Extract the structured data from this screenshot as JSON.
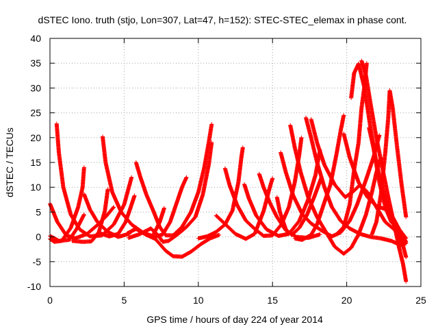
{
  "chart_data": {
    "type": "scatter",
    "title": "dSTEC Iono. truth (stjo, Lon=307, Lat=47, h=152): STEC-STEC_elemax in phase cont.",
    "xlabel": "GPS time / hours of day 224 of year 2014",
    "ylabel": "dSTEC  / TECUs",
    "xlim": [
      0,
      25
    ],
    "ylim": [
      -10,
      40
    ],
    "xticks": [
      0,
      5,
      10,
      15,
      20,
      25
    ],
    "yticks": [
      -10,
      -5,
      0,
      5,
      10,
      15,
      20,
      25,
      30,
      35,
      40
    ],
    "grid": true,
    "marker": "+",
    "color": "#ff0000",
    "arcs": [
      {
        "points": [
          [
            0.0,
            6.7
          ],
          [
            0.5,
            3.0
          ],
          [
            1.1,
            0.3
          ],
          [
            1.7,
            -0.3
          ],
          [
            2.5,
            0.6
          ],
          [
            3.2,
            2.4
          ],
          [
            3.8,
            4.2
          ],
          [
            4.3,
            6.0
          ]
        ]
      },
      {
        "points": [
          [
            0.0,
            -0.4
          ],
          [
            0.3,
            -1.0
          ],
          [
            0.8,
            -0.8
          ],
          [
            1.4,
            1.8
          ],
          [
            1.9,
            6.0
          ],
          [
            2.2,
            10.0
          ],
          [
            2.3,
            14.0
          ]
        ]
      },
      {
        "points": [
          [
            0.45,
            22.8
          ],
          [
            0.6,
            17.0
          ],
          [
            0.9,
            10.0
          ],
          [
            1.4,
            4.5
          ],
          [
            2.0,
            1.5
          ],
          [
            2.7,
            0.1
          ],
          [
            3.5,
            0.3
          ],
          [
            4.3,
            2.5
          ],
          [
            5.0,
            6.5
          ],
          [
            5.5,
            12.0
          ]
        ]
      },
      {
        "points": [
          [
            0.0,
            0.2
          ],
          [
            0.6,
            -0.8
          ],
          [
            1.3,
            -0.6
          ],
          [
            1.8,
            1.6
          ],
          [
            2.3,
            4.5
          ]
        ]
      },
      {
        "points": [
          [
            2.3,
            8.6
          ],
          [
            2.7,
            5.5
          ],
          [
            3.2,
            3.0
          ],
          [
            3.9,
            1.0
          ],
          [
            4.6,
            0.0
          ],
          [
            5.3,
            0.6
          ],
          [
            5.8,
            1.9
          ]
        ]
      },
      {
        "points": [
          [
            1.5,
            -0.8
          ],
          [
            2.2,
            -1.0
          ],
          [
            2.8,
            -0.9
          ],
          [
            3.3,
            1.0
          ],
          [
            3.7,
            5.2
          ],
          [
            3.9,
            9.6
          ]
        ]
      },
      {
        "points": [
          [
            3.55,
            20.2
          ],
          [
            3.75,
            15.0
          ],
          [
            4.2,
            9.0
          ],
          [
            4.8,
            5.0
          ],
          [
            5.5,
            2.5
          ],
          [
            6.3,
            0.8
          ],
          [
            7.1,
            0.0
          ],
          [
            7.6,
            0.5
          ],
          [
            8.1,
            3.0
          ],
          [
            8.5,
            6.5
          ],
          [
            8.9,
            10.0
          ],
          [
            9.2,
            12.0
          ]
        ]
      },
      {
        "points": [
          [
            3.4,
            0.7
          ],
          [
            4.0,
            0.1
          ],
          [
            4.6,
            0.6
          ],
          [
            5.1,
            3.0
          ],
          [
            5.5,
            6.5
          ],
          [
            5.7,
            8.3
          ]
        ]
      },
      {
        "points": [
          [
            5.2,
            0.7
          ],
          [
            5.8,
            1.6
          ],
          [
            6.5,
            0.4
          ],
          [
            7.1,
            -0.4
          ],
          [
            7.8,
            -2.8
          ],
          [
            8.3,
            -3.9
          ],
          [
            8.9,
            -4.0
          ],
          [
            9.5,
            -3.0
          ],
          [
            10.2,
            -1.4
          ],
          [
            10.8,
            -0.3
          ],
          [
            11.4,
            0.4
          ]
        ]
      },
      {
        "points": [
          [
            5.8,
            15.0
          ],
          [
            6.1,
            12.0
          ],
          [
            6.5,
            8.5
          ],
          [
            7.0,
            5.0
          ],
          [
            7.4,
            2.0
          ],
          [
            7.8,
            0.3
          ],
          [
            8.3,
            0.3
          ],
          [
            8.9,
            2.0
          ],
          [
            9.5,
            5.0
          ],
          [
            10.0,
            9.0
          ],
          [
            10.4,
            14.0
          ],
          [
            10.7,
            19.0
          ],
          [
            10.9,
            22.7
          ]
        ]
      },
      {
        "points": [
          [
            5.3,
            -0.2
          ],
          [
            6.0,
            0.5
          ],
          [
            6.8,
            1.7
          ],
          [
            7.3,
            0.3
          ],
          [
            7.6,
            -1.0
          ],
          [
            8.0,
            -0.8
          ],
          [
            8.6,
            0.5
          ],
          [
            9.2,
            2.0
          ],
          [
            9.8,
            4.0
          ],
          [
            10.3,
            8.5
          ],
          [
            10.7,
            14.5
          ],
          [
            10.9,
            19.0
          ]
        ]
      },
      {
        "points": [
          [
            7.0,
            0.6
          ],
          [
            7.4,
            3.0
          ],
          [
            7.7,
            5.8
          ]
        ]
      },
      {
        "points": [
          [
            10.0,
            -0.3
          ],
          [
            10.6,
            0.1
          ],
          [
            11.2,
            1.0
          ],
          [
            11.8,
            2.5
          ],
          [
            12.3,
            5.3
          ],
          [
            12.7,
            11.0
          ],
          [
            12.9,
            16.0
          ],
          [
            13.0,
            18.0
          ]
        ]
      },
      {
        "points": [
          [
            11.8,
            13.8
          ],
          [
            12.1,
            10.5
          ],
          [
            12.6,
            6.5
          ],
          [
            13.2,
            3.3
          ],
          [
            13.8,
            1.6
          ],
          [
            14.4,
            0.2
          ],
          [
            15.0,
            0.3
          ],
          [
            15.6,
            2.5
          ],
          [
            16.1,
            6.0
          ],
          [
            16.5,
            11.0
          ],
          [
            16.8,
            16.5
          ],
          [
            16.95,
            20.0
          ]
        ]
      },
      {
        "points": [
          [
            11.2,
            4.3
          ],
          [
            11.8,
            2.6
          ],
          [
            12.5,
            0.6
          ],
          [
            13.2,
            -0.4
          ],
          [
            13.8,
            0.6
          ],
          [
            14.4,
            5.2
          ],
          [
            14.8,
            9.8
          ],
          [
            15.0,
            11.8
          ]
        ]
      },
      {
        "points": [
          [
            13.1,
            10.6
          ],
          [
            13.4,
            7.8
          ],
          [
            13.9,
            4.3
          ],
          [
            14.6,
            1.5
          ],
          [
            15.4,
            0.2
          ],
          [
            16.1,
            0.6
          ],
          [
            16.8,
            3.2
          ],
          [
            17.4,
            7.5
          ],
          [
            17.9,
            12.5
          ],
          [
            18.2,
            17.5
          ]
        ]
      },
      {
        "points": [
          [
            14.1,
            12.7
          ],
          [
            14.4,
            10.0
          ],
          [
            14.8,
            7.0
          ],
          [
            15.3,
            4.0
          ],
          [
            15.9,
            1.3
          ],
          [
            16.6,
            0.0
          ],
          [
            17.4,
            -0.2
          ],
          [
            18.2,
            0.5
          ]
        ]
      },
      {
        "points": [
          [
            15.3,
            8.0
          ],
          [
            15.5,
            5.0
          ],
          [
            15.9,
            1.5
          ],
          [
            16.3,
            0.4
          ],
          [
            16.8,
            1.8
          ],
          [
            17.3,
            4.3
          ],
          [
            17.8,
            8.0
          ],
          [
            18.3,
            12.0
          ]
        ]
      },
      {
        "points": [
          [
            15.55,
            17.0
          ],
          [
            15.9,
            13.0
          ],
          [
            16.4,
            8.3
          ],
          [
            17.0,
            4.6
          ],
          [
            17.6,
            2.7
          ],
          [
            18.3,
            1.3
          ],
          [
            19.0,
            0.1
          ],
          [
            19.6,
            0.9
          ],
          [
            20.2,
            3.2
          ],
          [
            20.7,
            6.5
          ],
          [
            21.3,
            11.5
          ],
          [
            21.8,
            16.0
          ],
          [
            22.2,
            20.5
          ]
        ]
      },
      {
        "points": [
          [
            16.2,
            22.5
          ],
          [
            16.5,
            18.0
          ],
          [
            16.9,
            13.0
          ],
          [
            17.4,
            8.0
          ],
          [
            18.0,
            4.0
          ],
          [
            18.6,
            1.0
          ],
          [
            19.2,
            -2.0
          ],
          [
            19.8,
            -3.4
          ],
          [
            20.3,
            -2.2
          ],
          [
            20.8,
            0.5
          ],
          [
            21.3,
            4.5
          ],
          [
            21.7,
            9.0
          ],
          [
            22.0,
            13.0
          ],
          [
            22.3,
            16.0
          ]
        ]
      },
      {
        "points": [
          [
            17.25,
            24.0
          ],
          [
            17.6,
            20.0
          ],
          [
            18.0,
            15.0
          ],
          [
            18.5,
            10.0
          ],
          [
            19.0,
            6.0
          ],
          [
            19.6,
            3.2
          ],
          [
            20.2,
            1.7
          ],
          [
            20.9,
            0.6
          ],
          [
            21.6,
            0.0
          ],
          [
            22.3,
            -0.3
          ],
          [
            23.0,
            -0.8
          ],
          [
            23.6,
            -1.6
          ],
          [
            24.0,
            -1.3
          ]
        ]
      },
      {
        "points": [
          [
            16.5,
            -0.3
          ],
          [
            17.0,
            -0.6
          ],
          [
            17.6,
            0.4
          ],
          [
            18.0,
            2.5
          ],
          [
            18.5,
            7.0
          ],
          [
            18.9,
            10.5
          ],
          [
            19.3,
            16.5
          ],
          [
            19.6,
            21.5
          ],
          [
            19.8,
            24.5
          ]
        ]
      },
      {
        "points": [
          [
            17.6,
            23.7
          ],
          [
            18.0,
            19.0
          ],
          [
            18.5,
            14.5
          ],
          [
            19.2,
            10.5
          ],
          [
            19.9,
            8.0
          ],
          [
            20.5,
            9.3
          ],
          [
            20.9,
            10.5
          ],
          [
            21.4,
            9.0
          ],
          [
            22.0,
            6.0
          ],
          [
            22.6,
            3.0
          ],
          [
            23.2,
            1.5
          ],
          [
            23.8,
            -0.5
          ],
          [
            24.0,
            -1.3
          ]
        ]
      },
      {
        "points": [
          [
            19.3,
            0.5
          ],
          [
            19.8,
            2.0
          ],
          [
            20.2,
            6.5
          ],
          [
            20.5,
            13.5
          ],
          [
            20.8,
            19.0
          ],
          [
            21.0,
            26.0
          ],
          [
            21.2,
            30.5
          ],
          [
            21.35,
            35.0
          ]
        ]
      },
      {
        "points": [
          [
            19.8,
            20.8
          ],
          [
            20.2,
            16.0
          ],
          [
            20.8,
            11.0
          ],
          [
            21.4,
            8.0
          ],
          [
            22.0,
            6.2
          ],
          [
            22.6,
            5.6
          ],
          [
            23.1,
            4.0
          ],
          [
            23.6,
            1.2
          ],
          [
            24.0,
            -1.0
          ]
        ]
      },
      {
        "points": [
          [
            20.3,
            28.0
          ],
          [
            20.5,
            33.0
          ],
          [
            20.8,
            34.9
          ],
          [
            21.2,
            30.0
          ],
          [
            21.6,
            22.0
          ],
          [
            22.0,
            15.0
          ],
          [
            22.4,
            10.0
          ],
          [
            22.8,
            5.5
          ],
          [
            23.3,
            1.5
          ],
          [
            23.8,
            -1.8
          ],
          [
            24.0,
            -4.1
          ]
        ]
      },
      {
        "points": [
          [
            21.0,
            35.5
          ],
          [
            21.3,
            32.5
          ],
          [
            21.6,
            27.0
          ],
          [
            22.0,
            20.0
          ],
          [
            22.4,
            14.0
          ],
          [
            22.8,
            8.0
          ],
          [
            23.2,
            2.5
          ],
          [
            23.5,
            -1.8
          ],
          [
            23.8,
            -5.5
          ],
          [
            24.0,
            -9.0
          ]
        ]
      },
      {
        "points": [
          [
            21.7,
            0.5
          ],
          [
            22.0,
            3.0
          ],
          [
            22.3,
            8.5
          ],
          [
            22.6,
            17.0
          ],
          [
            22.8,
            24.0
          ],
          [
            22.9,
            29.5
          ],
          [
            23.1,
            26.0
          ],
          [
            23.4,
            18.0
          ],
          [
            23.7,
            10.5
          ],
          [
            24.0,
            4.0
          ]
        ]
      },
      {
        "points": [
          [
            21.5,
            22.0
          ],
          [
            21.8,
            18.0
          ],
          [
            22.2,
            11.0
          ],
          [
            22.6,
            6.0
          ],
          [
            23.0,
            3.0
          ],
          [
            23.6,
            1.3
          ],
          [
            24.0,
            -0.3
          ]
        ]
      }
    ]
  }
}
